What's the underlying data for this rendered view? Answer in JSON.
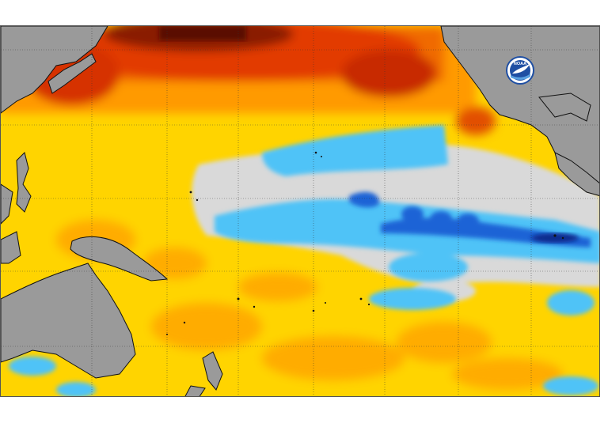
{
  "logo": {
    "label": "NOAA",
    "icon": "noaa-logo-icon",
    "colors": {
      "ring": "#1f4fa3",
      "bird": "#ffffff",
      "wave": "#5aa0e0"
    }
  },
  "legend_colors": {
    "land": "#9a9a9a",
    "very_warm": "#5a0a00",
    "warm": "#e23a00",
    "mild_warm": "#ff9a00",
    "slightly_warm": "#ffd400",
    "neutral": "#d9d9d9",
    "cool": "#4fc3f7",
    "cold": "#1e63d6",
    "very_cold": "#0b2a8c"
  }
}
